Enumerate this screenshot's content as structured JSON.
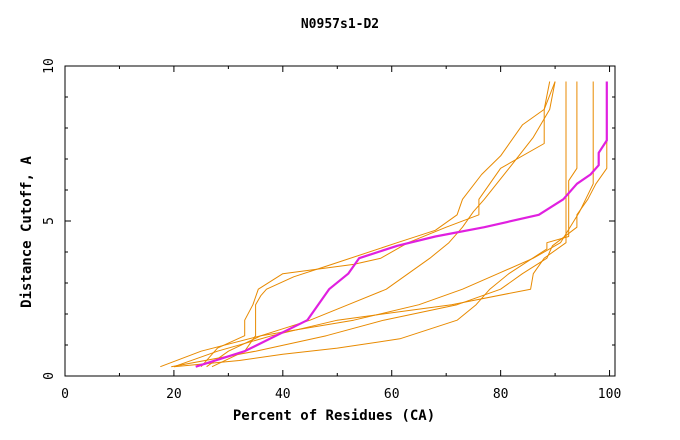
{
  "chart_data": {
    "type": "line",
    "title": "N0957s1-D2",
    "xlabel": "Percent of Residues (CA)",
    "ylabel": "Distance Cutoff, A",
    "xlim": [
      0,
      101
    ],
    "ylim": [
      0,
      10
    ],
    "xticks": [
      0,
      20,
      40,
      60,
      80,
      100
    ],
    "yticks": [
      0,
      5,
      10
    ],
    "grid": false,
    "legend": "none",
    "colors": {
      "background": "#ffffff",
      "axis": "#000000",
      "model": "#e88a00",
      "highlight": "#e020e0"
    },
    "series": [
      {
        "color": "#e020e0",
        "highlight": true,
        "points": [
          [
            24,
            0.3
          ],
          [
            33,
            0.8
          ],
          [
            44.5,
            1.8
          ],
          [
            48.5,
            2.8
          ],
          [
            52,
            3.3
          ],
          [
            54,
            3.8
          ],
          [
            61,
            4.2
          ],
          [
            68,
            4.5
          ],
          [
            77,
            4.8
          ],
          [
            87,
            5.2
          ],
          [
            91.5,
            5.7
          ],
          [
            94,
            6.2
          ],
          [
            96.5,
            6.5
          ],
          [
            98,
            6.8
          ],
          [
            98,
            7.2
          ],
          [
            99.5,
            7.6
          ],
          [
            99.5,
            9.5
          ]
        ]
      },
      {
        "color": "#e88a00",
        "points": [
          [
            19.5,
            0.3
          ],
          [
            35,
            0.8
          ],
          [
            48,
            1.3
          ],
          [
            58.5,
            1.8
          ],
          [
            72,
            2.3
          ],
          [
            80,
            2.8
          ],
          [
            84,
            3.3
          ],
          [
            88.5,
            3.8
          ],
          [
            89.5,
            4.2
          ],
          [
            94,
            4.8
          ],
          [
            94,
            5.2
          ],
          [
            96,
            5.7
          ],
          [
            97.5,
            6.2
          ],
          [
            99.5,
            6.7
          ],
          [
            99.5,
            9.5
          ]
        ]
      },
      {
        "color": "#e88a00",
        "points": [
          [
            20,
            0.3
          ],
          [
            32,
            0.5
          ],
          [
            40,
            0.7
          ],
          [
            50,
            0.9
          ],
          [
            61.5,
            1.2
          ],
          [
            72,
            1.8
          ],
          [
            75.5,
            2.3
          ],
          [
            78,
            2.8
          ],
          [
            81.5,
            3.3
          ],
          [
            88.5,
            4.1
          ],
          [
            88.5,
            4.3
          ],
          [
            92.5,
            4.5
          ],
          [
            92.5,
            6.3
          ],
          [
            94,
            6.7
          ],
          [
            94,
            9.5
          ]
        ]
      },
      {
        "color": "#e88a00",
        "points": [
          [
            17.5,
            0.3
          ],
          [
            25,
            0.8
          ],
          [
            36,
            1.3
          ],
          [
            53,
            1.8
          ],
          [
            65,
            2.3
          ],
          [
            73,
            2.8
          ],
          [
            79.5,
            3.3
          ],
          [
            86,
            3.8
          ],
          [
            91,
            4.3
          ],
          [
            94.5,
            5.3
          ],
          [
            97,
            6.2
          ],
          [
            97,
            9.5
          ]
        ]
      },
      {
        "color": "#e88a00",
        "points": [
          [
            20,
            0.3
          ],
          [
            28,
            0.8
          ],
          [
            38,
            1.3
          ],
          [
            50,
            1.8
          ],
          [
            71,
            2.3
          ],
          [
            85.5,
            2.8
          ],
          [
            86,
            3.3
          ],
          [
            88,
            3.8
          ],
          [
            92,
            4.3
          ],
          [
            92,
            5.3
          ],
          [
            92,
            7.4
          ],
          [
            92,
            9.5
          ]
        ]
      },
      {
        "color": "#e88a00",
        "points": [
          [
            25,
            0.3
          ],
          [
            28,
            0.9
          ],
          [
            33,
            1.3
          ],
          [
            33,
            1.8
          ],
          [
            34.5,
            2.3
          ],
          [
            35.5,
            2.8
          ],
          [
            40,
            3.3
          ],
          [
            53,
            3.6
          ],
          [
            58,
            3.8
          ],
          [
            63,
            4.3
          ],
          [
            70,
            4.8
          ],
          [
            76,
            5.2
          ],
          [
            76,
            5.7
          ],
          [
            80,
            6.7
          ],
          [
            88,
            7.5
          ],
          [
            88,
            8.6
          ],
          [
            89,
            9.5
          ]
        ]
      },
      {
        "color": "#e88a00",
        "points": [
          [
            26,
            0.3
          ],
          [
            30,
            0.8
          ],
          [
            36,
            1.3
          ],
          [
            45,
            1.8
          ],
          [
            52,
            2.3
          ],
          [
            59,
            2.8
          ],
          [
            63,
            3.3
          ],
          [
            67,
            3.8
          ],
          [
            70.5,
            4.3
          ],
          [
            73,
            4.8
          ],
          [
            75,
            5.3
          ],
          [
            77,
            5.7
          ],
          [
            82,
            6.8
          ],
          [
            86,
            7.7
          ],
          [
            89,
            8.6
          ],
          [
            90,
            9.5
          ]
        ]
      },
      {
        "color": "#e88a00",
        "points": [
          [
            27,
            0.3
          ],
          [
            33,
            0.8
          ],
          [
            35,
            1.3
          ],
          [
            35,
            1.8
          ],
          [
            35,
            2.3
          ],
          [
            36,
            2.6
          ],
          [
            37,
            2.8
          ],
          [
            42,
            3.2
          ],
          [
            49,
            3.6
          ],
          [
            61,
            4.3
          ],
          [
            68,
            4.7
          ],
          [
            72,
            5.2
          ],
          [
            73,
            5.7
          ],
          [
            76.5,
            6.5
          ],
          [
            80,
            7.1
          ],
          [
            84,
            8.1
          ],
          [
            88,
            8.6
          ],
          [
            90,
            9.5
          ]
        ]
      }
    ]
  }
}
